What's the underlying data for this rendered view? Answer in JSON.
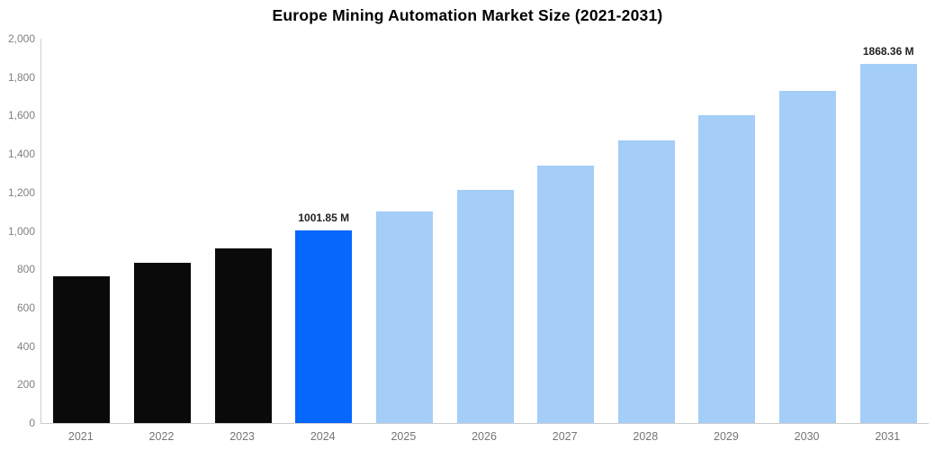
{
  "title": "Europe Mining Automation Market Size (2021-2031)",
  "colors": {
    "background": "#ffffff",
    "title_text": "#000000",
    "bar_historical": "#0a0a0a",
    "bar_current": "#0667fc",
    "bar_forecast": "#a4cdf8",
    "axis_line": "#cccccc",
    "y_label_text": "#808080",
    "x_label_text": "#757575",
    "data_label_text": "#222222"
  },
  "chart_data": {
    "type": "bar",
    "title": "Europe Mining Automation Market Size (2021-2031)",
    "xlabel": "",
    "ylabel": "",
    "unit": "M",
    "categories": [
      "2021",
      "2022",
      "2023",
      "2024",
      "2025",
      "2026",
      "2027",
      "2028",
      "2029",
      "2030",
      "2031"
    ],
    "values": [
      765,
      835,
      910,
      1001.85,
      1100,
      1215,
      1340,
      1470,
      1600,
      1730,
      1868.36
    ],
    "bar_roles": [
      "historical",
      "historical",
      "historical",
      "current",
      "forecast",
      "forecast",
      "forecast",
      "forecast",
      "forecast",
      "forecast",
      "forecast"
    ],
    "data_labels": [
      {
        "index": 3,
        "text": "1001.85 M"
      },
      {
        "index": 10,
        "text": "1868.36 M"
      }
    ],
    "ylim": [
      0,
      2000
    ],
    "y_axis": {
      "min": 0,
      "max": 2000,
      "step": 200,
      "tick_labels": [
        "0",
        "200",
        "400",
        "600",
        "800",
        "1,000",
        "1,200",
        "1,400",
        "1,600",
        "1,800",
        "2,000"
      ]
    },
    "grid": false,
    "legend_position": "none"
  }
}
